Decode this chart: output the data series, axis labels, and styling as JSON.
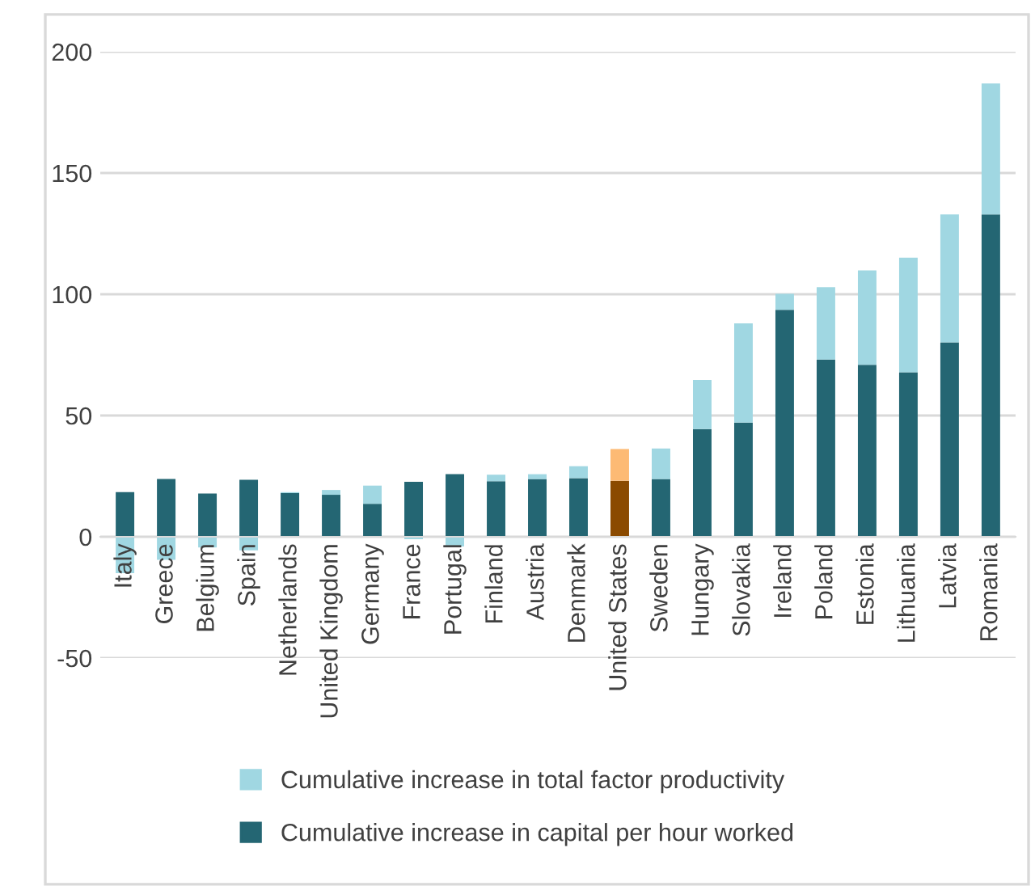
{
  "chart_data": {
    "type": "bar",
    "stacked": true,
    "categories": [
      "Italy",
      "Greece",
      "Belgium",
      "Spain",
      "Netherlands",
      "United Kingdom",
      "Germany",
      "France",
      "Portugal",
      "Finland",
      "Austria",
      "Denmark",
      "United States",
      "Sweden",
      "Hungary",
      "Slovakia",
      "Ireland",
      "Poland",
      "Estonia",
      "Lithuania",
      "Latvia",
      "Romania"
    ],
    "series": [
      {
        "name": "Cumulative increase in capital per hour worked",
        "color": "#246673",
        "colors": [
          "#246673",
          "#246673",
          "#246673",
          "#246673",
          "#246673",
          "#246673",
          "#246673",
          "#246673",
          "#246673",
          "#246673",
          "#246673",
          "#246673",
          "#8b4a00",
          "#246673",
          "#246673",
          "#246673",
          "#246673",
          "#246673",
          "#246673",
          "#246673",
          "#246673",
          "#246673"
        ],
        "values": [
          18.4,
          23.8,
          17.8,
          23.5,
          18,
          17.3,
          13.6,
          22.7,
          25.8,
          22.9,
          23.8,
          24.2,
          23.1,
          23.8,
          44.4,
          47.1,
          93.6,
          73.1,
          70.9,
          67.8,
          80.2,
          132.9
        ]
      },
      {
        "name": "Cumulative increase in total factor productivity",
        "color": "#a0d7e2",
        "colors": [
          "#a0d7e2",
          "#a0d7e2",
          "#a0d7e2",
          "#a0d7e2",
          "#a0d7e2",
          "#a0d7e2",
          "#a0d7e2",
          "#a0d7e2",
          "#a0d7e2",
          "#a0d7e2",
          "#a0d7e2",
          "#a0d7e2",
          "#fdba74",
          "#a0d7e2",
          "#a0d7e2",
          "#a0d7e2",
          "#a0d7e2",
          "#a0d7e2",
          "#a0d7e2",
          "#a0d7e2",
          "#a0d7e2",
          "#a0d7e2"
        ],
        "values": [
          -15,
          -9.5,
          -4.4,
          -5.6,
          0.4,
          2,
          7.5,
          -1,
          -4,
          2.7,
          2,
          4.9,
          13.1,
          12.6,
          20.3,
          40.9,
          6.6,
          29.8,
          38.9,
          47.3,
          52.7,
          54
        ]
      }
    ],
    "ylim": [
      -50,
      200
    ],
    "yticks": [
      -50,
      0,
      50,
      100,
      150,
      200
    ],
    "grid": "y",
    "legend": "bottom"
  }
}
